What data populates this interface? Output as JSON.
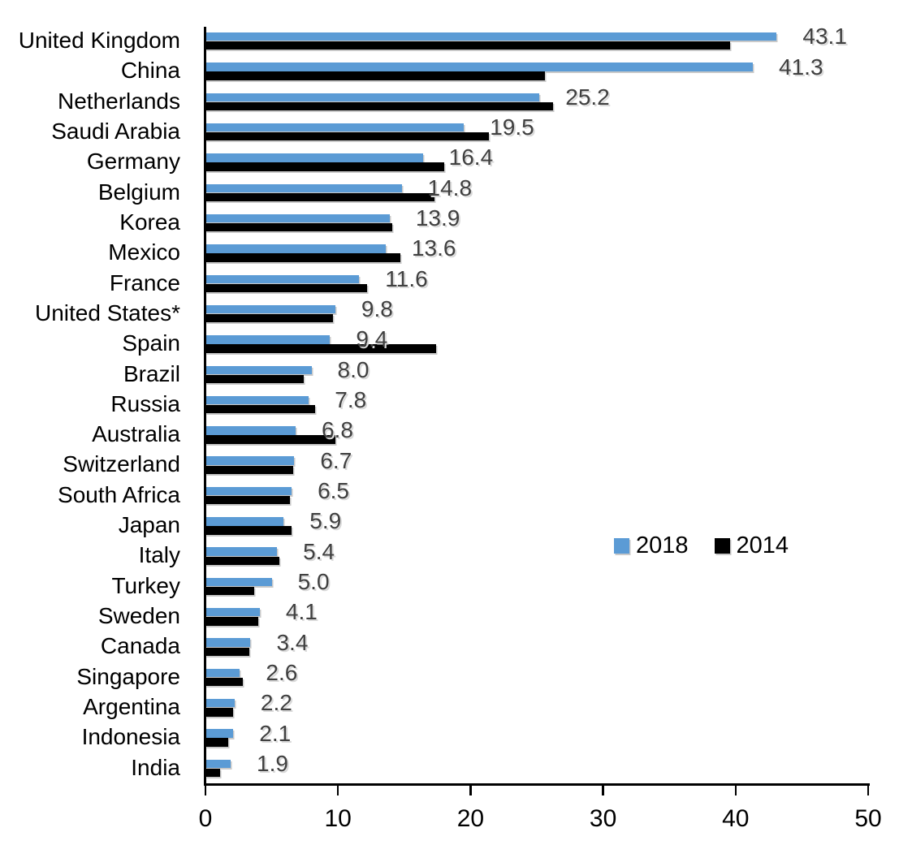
{
  "chart_data": {
    "type": "bar",
    "orientation": "horizontal",
    "title": "",
    "xlabel": "",
    "ylabel": "",
    "categories": [
      "United Kingdom",
      "China",
      "Netherlands",
      "Saudi Arabia",
      "Germany",
      "Belgium",
      "Korea",
      "Mexico",
      "France",
      "United States*",
      "Spain",
      "Brazil",
      "Russia",
      "Australia",
      "Switzerland",
      "South Africa",
      "Japan",
      "Italy",
      "Turkey",
      "Sweden",
      "Canada",
      "Singapore",
      "Argentina",
      "Indonesia",
      "India"
    ],
    "series": [
      {
        "name": "2018",
        "color": "#5B9BD5",
        "values": [
          43.1,
          41.3,
          25.2,
          19.5,
          16.4,
          14.8,
          13.9,
          13.6,
          11.6,
          9.8,
          9.4,
          8.0,
          7.8,
          6.8,
          6.7,
          6.5,
          5.9,
          5.4,
          5.0,
          4.1,
          3.4,
          2.6,
          2.2,
          2.1,
          1.9
        ]
      },
      {
        "name": "2014",
        "color": "#000000",
        "values": [
          39.6,
          25.6,
          26.2,
          21.4,
          18.0,
          17.3,
          14.1,
          14.7,
          12.2,
          9.6,
          17.4,
          7.4,
          8.3,
          9.8,
          6.6,
          6.4,
          6.5,
          5.6,
          3.7,
          4.0,
          3.3,
          2.8,
          2.1,
          1.7,
          1.1
        ],
        "note": "unlabeled in chart; values estimated from bar lengths"
      }
    ],
    "data_labels": [
      "43.1",
      "41.3",
      "25.2",
      "19.5",
      "16.4",
      "14.8",
      "13.9",
      "13.6",
      "11.6",
      "9.8",
      "9.4",
      "8.0",
      "7.8",
      "6.8",
      "6.7",
      "6.5",
      "5.9",
      "5.4",
      "5.0",
      "4.1",
      "3.4",
      "2.6",
      "2.2",
      "2.1",
      "1.9"
    ],
    "data_labels_series": "2018",
    "xlim": [
      0,
      50
    ],
    "x_ticks": [
      "0",
      "10",
      "20",
      "30",
      "40",
      "50"
    ],
    "grid": false,
    "legend": {
      "position": "middle-right",
      "items": [
        {
          "label": "2018",
          "color": "#5B9BD5"
        },
        {
          "label": "2014",
          "color": "#000000"
        }
      ]
    }
  },
  "colors": {
    "bar_2018": "#5B9BD5",
    "bar_2014": "#000000",
    "value_label": "#404040",
    "axis": "#000000",
    "background": "#ffffff"
  }
}
